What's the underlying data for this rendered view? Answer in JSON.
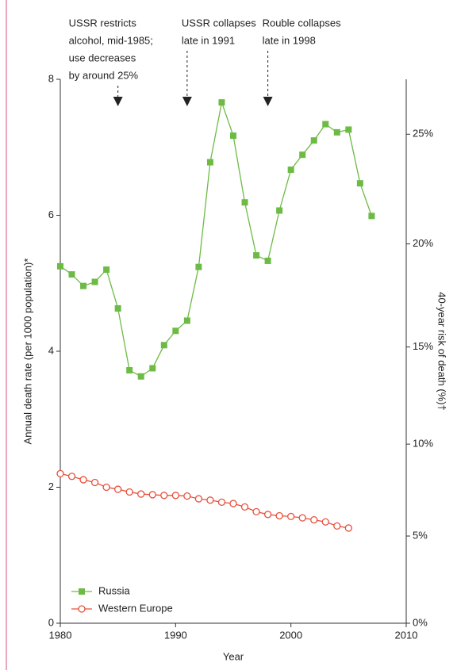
{
  "chart_data": {
    "type": "line",
    "x_label": "Year",
    "y_label": "Annual death rate (per 1000 population)*",
    "y2_label": "40-year risk of death (%)†",
    "x": [
      1980,
      1981,
      1982,
      1983,
      1984,
      1985,
      1986,
      1987,
      1988,
      1989,
      1990,
      1991,
      1992,
      1993,
      1994,
      1995,
      1996,
      1997,
      1998,
      1999,
      2000,
      2001,
      2002,
      2003,
      2004,
      2005,
      2006,
      2007
    ],
    "series": [
      {
        "name": "Russia",
        "color": "#6dbb45",
        "marker": "square",
        "values": [
          5.25,
          5.13,
          4.96,
          5.02,
          5.2,
          4.63,
          3.72,
          3.63,
          3.75,
          4.09,
          4.3,
          4.45,
          5.24,
          6.78,
          7.66,
          7.17,
          6.19,
          5.41,
          5.33,
          6.07,
          6.67,
          6.89,
          7.1,
          7.34,
          7.22,
          7.26,
          6.47,
          5.99
        ]
      },
      {
        "name": "Western Europe",
        "color": "#e8503c",
        "marker": "circle",
        "values": [
          2.2,
          2.16,
          2.11,
          2.07,
          2.0,
          1.97,
          1.93,
          1.9,
          1.89,
          1.88,
          1.88,
          1.87,
          1.83,
          1.81,
          1.78,
          1.76,
          1.71,
          1.64,
          1.6,
          1.58,
          1.57,
          1.55,
          1.52,
          1.49,
          1.43,
          1.4,
          null,
          null
        ]
      }
    ],
    "xlim": [
      1980,
      2010
    ],
    "xticks": [
      1980,
      1990,
      2000,
      2010
    ],
    "ylim": [
      0,
      8
    ],
    "yticks": [
      0,
      2,
      4,
      6,
      8
    ],
    "y2lim": [
      0,
      27.4
    ],
    "y2ticks": [
      {
        "value": 0,
        "label": "0%"
      },
      {
        "value": 5,
        "label": "5%"
      },
      {
        "value": 10,
        "label": "10%"
      },
      {
        "value": 15,
        "label": "15%"
      },
      {
        "value": 20,
        "label": "20%"
      },
      {
        "value": 25,
        "label": "25%"
      }
    ],
    "annotations": [
      {
        "x": 1985,
        "lines": [
          "USSR restricts",
          "alcohol, mid-1985;",
          "use decreases",
          "by around 25%"
        ]
      },
      {
        "x": 1991,
        "lines": [
          "USSR collapses",
          "late in 1991"
        ]
      },
      {
        "x": 1998,
        "lines": [
          "Rouble collapses",
          "late in 1998"
        ]
      }
    ],
    "legend": "lower left"
  }
}
